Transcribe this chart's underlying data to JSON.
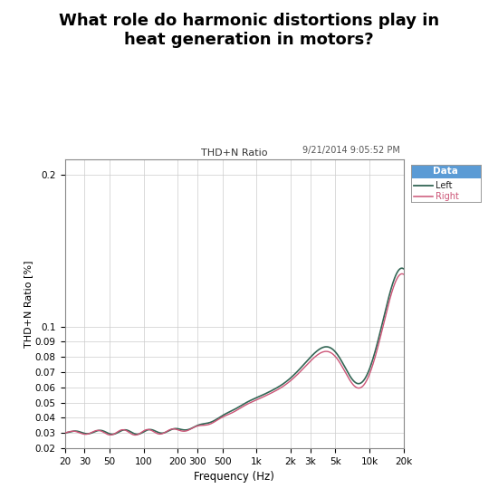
{
  "title": "What role do harmonic distortions play in\nheat generation in motors?",
  "chart_title": "THD+N Ratio",
  "timestamp": "9/21/2014 9:05:52 PM",
  "xlabel": "Frequency (Hz)",
  "ylabel": "THD+N Ratio [%]",
  "legend_title": "Data",
  "legend_entries": [
    "Left",
    "Right"
  ],
  "left_color": "#336655",
  "right_color": "#cc5577",
  "background_color": "#ffffff",
  "plot_bg_color": "#ffffff",
  "grid_color": "#cccccc",
  "ylim_low": 0.02,
  "ylim_high": 0.21,
  "ytick_labels": [
    "0.2",
    "0.1",
    "0.09",
    "0.08",
    "0.07",
    "0.06",
    "0.05",
    "0.04",
    "0.03",
    "0.02"
  ],
  "ytick_values": [
    0.2,
    0.1,
    0.09,
    0.08,
    0.07,
    0.06,
    0.05,
    0.04,
    0.03,
    0.02
  ],
  "xtick_labels": [
    "20",
    "30",
    "50",
    "100",
    "200",
    "300",
    "500",
    "1k",
    "2k",
    "3k",
    "5k",
    "10k",
    "20k"
  ],
  "xtick_values": [
    20,
    30,
    50,
    100,
    200,
    300,
    500,
    1000,
    2000,
    3000,
    5000,
    10000,
    20000
  ],
  "legend_bg": "#5b9bd5",
  "legend_text_color": "#ffffff"
}
